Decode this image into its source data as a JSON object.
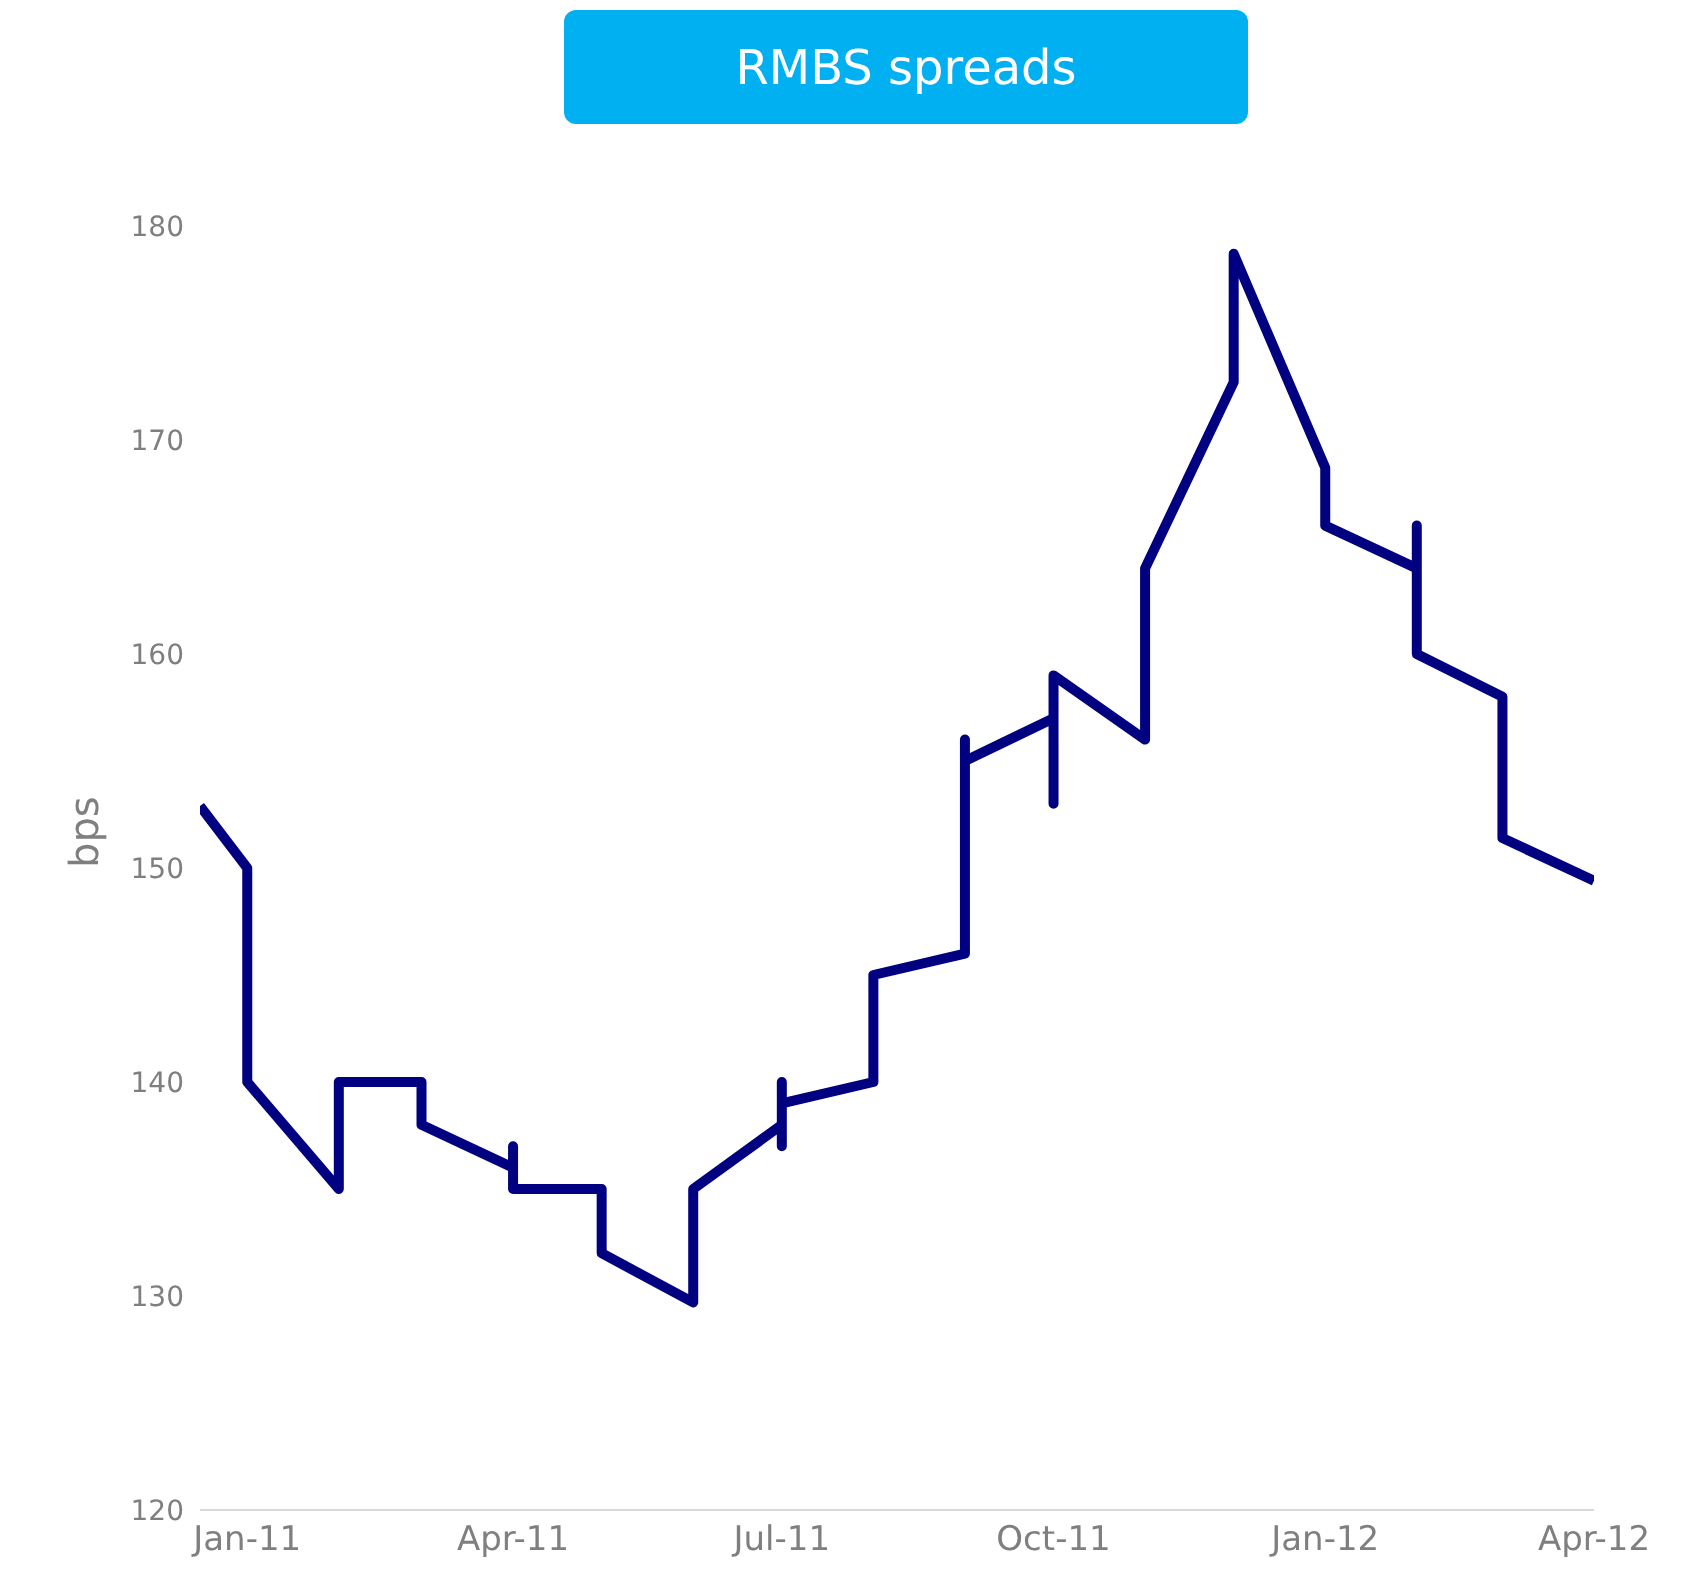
{
  "chart_data": {
    "type": "line",
    "title": "RMBS spreads",
    "ylabel": "bps",
    "x": [
      "2010-12-16",
      "2011-01-01",
      "2011-01-01",
      "2011-02-01",
      "2011-02-01",
      "2011-03-01",
      "2011-03-01",
      "2011-04-01",
      "2011-04-01",
      "2011-04-01",
      "2011-05-01",
      "2011-05-01",
      "2011-06-01",
      "2011-06-01",
      "2011-07-01",
      "2011-07-01",
      "2011-07-01",
      "2011-07-01",
      "2011-08-01",
      "2011-08-01",
      "2011-09-01",
      "2011-09-01",
      "2011-09-01",
      "2011-10-01",
      "2011-10-01",
      "2011-10-01",
      "2011-11-01",
      "2011-11-01",
      "2011-12-01",
      "2011-12-01",
      "2012-01-01",
      "2012-01-01",
      "2012-02-01",
      "2012-02-01",
      "2012-02-01",
      "2012-03-01",
      "2012-03-01",
      "2012-04-01"
    ],
    "values": [
      152.9,
      150,
      140,
      135,
      140,
      140,
      138,
      136,
      137,
      135,
      135,
      132,
      129.7,
      135,
      138,
      140,
      137,
      139,
      140,
      145,
      146,
      156,
      155,
      157,
      153,
      159,
      156,
      164,
      172.7,
      178.7,
      168.7,
      166,
      164,
      166,
      160,
      158,
      151.4,
      149.4
    ],
    "color": "#000080",
    "line_style": "solid",
    "marker": "none",
    "xlim": [
      "2010-12-16",
      "2012-04-01"
    ],
    "xticks": [
      {
        "value": "2011-01-01",
        "label": "Jan-11"
      },
      {
        "value": "2011-04-01",
        "label": "Apr-11"
      },
      {
        "value": "2011-07-01",
        "label": "Jul-11"
      },
      {
        "value": "2011-10-01",
        "label": "Oct-11"
      },
      {
        "value": "2012-01-01",
        "label": "Jan-12"
      },
      {
        "value": "2012-04-01",
        "label": "Apr-12"
      }
    ],
    "ylim": [
      120,
      180
    ],
    "yticks": [
      120,
      130,
      140,
      150,
      160,
      170,
      180
    ],
    "grid": false,
    "legend": false
  }
}
